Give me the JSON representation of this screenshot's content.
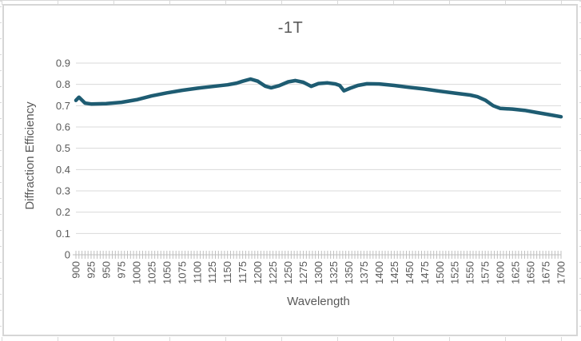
{
  "chart_data": {
    "type": "line",
    "title": "-1T",
    "xlabel": "Wavelength",
    "ylabel": "Diffraction Efficiency",
    "xlim": [
      900,
      1700
    ],
    "ylim": [
      0,
      0.9
    ],
    "x_major_tick_step": 25,
    "x_minor_tick_step": 5,
    "y_tick_step": 0.1,
    "grid": "horizontal",
    "legend": "none",
    "x_tick_labels": [
      "900",
      "925",
      "950",
      "975",
      "1000",
      "1025",
      "1050",
      "1075",
      "1100",
      "1125",
      "1150",
      "1175",
      "1200",
      "1225",
      "1250",
      "1275",
      "1300",
      "1325",
      "1350",
      "1375",
      "1400",
      "1425",
      "1450",
      "1475",
      "1500",
      "1525",
      "1550",
      "1575",
      "1600",
      "1625",
      "1650",
      "1675",
      "1700"
    ],
    "y_tick_labels": [
      "0",
      "0.1",
      "0.2",
      "0.3",
      "0.4",
      "0.5",
      "0.6",
      "0.7",
      "0.8",
      "0.9"
    ],
    "series": [
      {
        "name": "-1T",
        "x": [
          900,
          905,
          915,
          925,
          950,
          975,
          1000,
          1025,
          1050,
          1075,
          1100,
          1125,
          1150,
          1165,
          1175,
          1188,
          1200,
          1212,
          1222,
          1235,
          1250,
          1262,
          1275,
          1288,
          1300,
          1315,
          1328,
          1335,
          1342,
          1352,
          1365,
          1380,
          1400,
          1425,
          1450,
          1475,
          1500,
          1525,
          1550,
          1562,
          1575,
          1588,
          1600,
          1620,
          1640,
          1660,
          1680,
          1700
        ],
        "y": [
          0.725,
          0.74,
          0.712,
          0.708,
          0.71,
          0.716,
          0.728,
          0.746,
          0.76,
          0.772,
          0.782,
          0.79,
          0.798,
          0.806,
          0.815,
          0.825,
          0.815,
          0.792,
          0.784,
          0.794,
          0.812,
          0.818,
          0.81,
          0.791,
          0.804,
          0.807,
          0.802,
          0.795,
          0.77,
          0.782,
          0.795,
          0.803,
          0.802,
          0.795,
          0.786,
          0.778,
          0.768,
          0.759,
          0.75,
          0.742,
          0.726,
          0.7,
          0.687,
          0.684,
          0.678,
          0.668,
          0.658,
          0.648
        ]
      }
    ],
    "colors": {
      "series_line": "#1e5c72",
      "title_text": "#595959",
      "axis_text": "#595959",
      "gridline": "#d9d9d9",
      "axis_line": "#bfbfbf"
    }
  }
}
